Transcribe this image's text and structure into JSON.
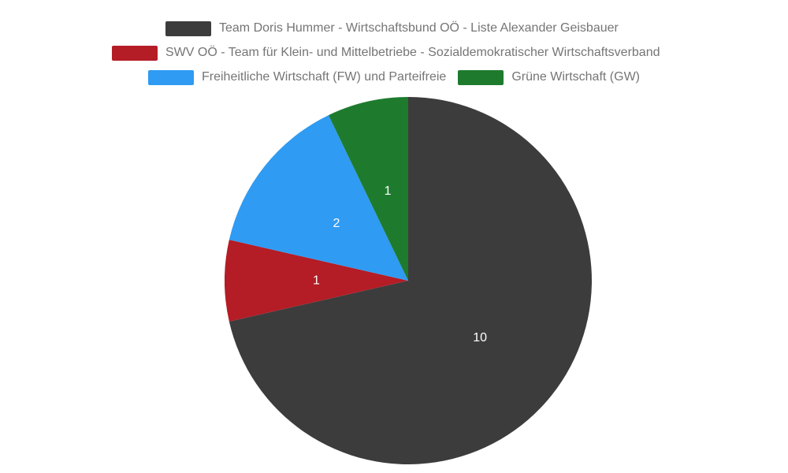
{
  "chart_data": {
    "type": "pie",
    "title": "",
    "legend_position": "top",
    "total": 14,
    "start_angle_deg": 0,
    "direction": "clockwise",
    "value_label_color": "#ffffff",
    "legend_text_color": "#757575",
    "slices": [
      {
        "label": "Team Doris Hummer - Wirtschaftsbund OÖ - Liste Alexander Geisbauer",
        "value": 10,
        "value_label": "10",
        "color": "#3C3C3C"
      },
      {
        "label": "SWV OÖ - Team für Klein- und Mittelbetriebe - Sozialdemokratischer Wirtschaftsverband",
        "value": 1,
        "value_label": "1",
        "color": "#B41C26"
      },
      {
        "label": "Freiheitliche Wirtschaft (FW) und Parteifreie",
        "value": 2,
        "value_label": "2",
        "color": "#2F9BF2"
      },
      {
        "label": "Grüne Wirtschaft (GW)",
        "value": 1,
        "value_label": "1",
        "color": "#1E7B2E"
      }
    ]
  }
}
